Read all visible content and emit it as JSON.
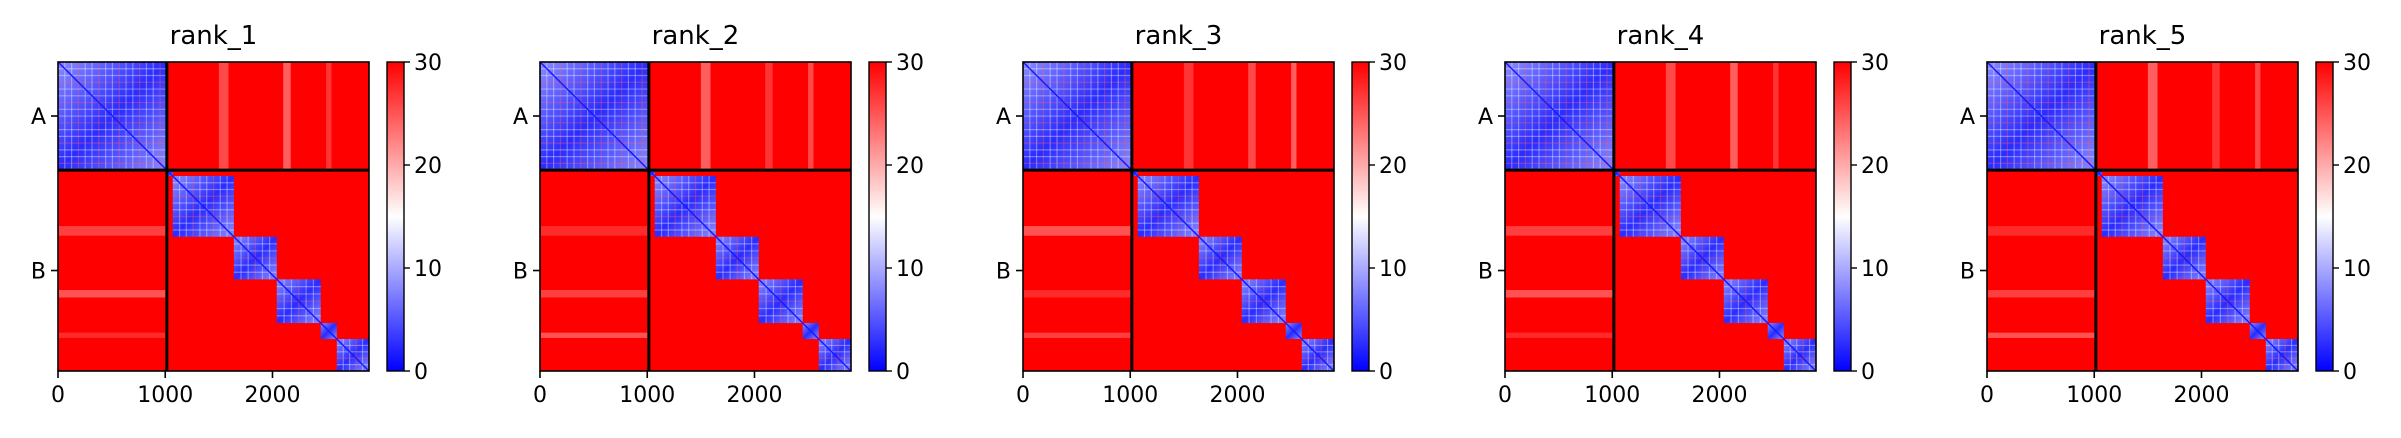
{
  "chart_data": [
    {
      "type": "heatmap",
      "title": "rank_1",
      "colormap": {
        "name": "bwr",
        "low": "#0000ff",
        "mid": "#ffffff",
        "high": "#ff0000"
      },
      "clim": [
        0,
        30
      ],
      "colorbar_ticks": [
        "0",
        "10",
        "20",
        "30"
      ],
      "xlim": [
        0,
        2900
      ],
      "xticks": [
        {
          "value": 0,
          "label": "0"
        },
        {
          "value": 1000,
          "label": "1000"
        },
        {
          "value": 2000,
          "label": "2000"
        }
      ],
      "chain_boundary": 1015,
      "yticks": [
        {
          "value": 507,
          "label": "A"
        },
        {
          "value": 1957,
          "label": "B"
        }
      ],
      "domains": [
        [
          0,
          1015
        ],
        [
          1070,
          1640
        ],
        [
          1640,
          2040
        ],
        [
          2040,
          2450
        ],
        [
          2600,
          2900
        ]
      ],
      "extra_domains": [
        [
          1015,
          1070
        ],
        [
          2450,
          2600
        ]
      ]
    },
    {
      "type": "heatmap",
      "title": "rank_2",
      "colormap": {
        "name": "bwr",
        "low": "#0000ff",
        "mid": "#ffffff",
        "high": "#ff0000"
      },
      "clim": [
        0,
        30
      ],
      "colorbar_ticks": [
        "0",
        "10",
        "20",
        "30"
      ],
      "xlim": [
        0,
        2900
      ],
      "xticks": [
        {
          "value": 0,
          "label": "0"
        },
        {
          "value": 1000,
          "label": "1000"
        },
        {
          "value": 2000,
          "label": "2000"
        }
      ],
      "chain_boundary": 1015,
      "yticks": [
        {
          "value": 507,
          "label": "A"
        },
        {
          "value": 1957,
          "label": "B"
        }
      ],
      "domains": [
        [
          0,
          1015
        ],
        [
          1070,
          1640
        ],
        [
          1640,
          2040
        ],
        [
          2040,
          2450
        ],
        [
          2600,
          2900
        ]
      ],
      "extra_domains": [
        [
          1015,
          1070
        ],
        [
          2450,
          2600
        ]
      ]
    },
    {
      "type": "heatmap",
      "title": "rank_3",
      "colormap": {
        "name": "bwr",
        "low": "#0000ff",
        "mid": "#ffffff",
        "high": "#ff0000"
      },
      "clim": [
        0,
        30
      ],
      "colorbar_ticks": [
        "0",
        "10",
        "20",
        "30"
      ],
      "xlim": [
        0,
        2900
      ],
      "xticks": [
        {
          "value": 0,
          "label": "0"
        },
        {
          "value": 1000,
          "label": "1000"
        },
        {
          "value": 2000,
          "label": "2000"
        }
      ],
      "chain_boundary": 1015,
      "yticks": [
        {
          "value": 507,
          "label": "A"
        },
        {
          "value": 1957,
          "label": "B"
        }
      ],
      "domains": [
        [
          0,
          1015
        ],
        [
          1070,
          1640
        ],
        [
          1640,
          2040
        ],
        [
          2040,
          2450
        ],
        [
          2600,
          2900
        ]
      ],
      "extra_domains": [
        [
          1015,
          1070
        ],
        [
          2450,
          2600
        ]
      ]
    },
    {
      "type": "heatmap",
      "title": "rank_4",
      "colormap": {
        "name": "bwr",
        "low": "#0000ff",
        "mid": "#ffffff",
        "high": "#ff0000"
      },
      "clim": [
        0,
        30
      ],
      "colorbar_ticks": [
        "0",
        "10",
        "20",
        "30"
      ],
      "xlim": [
        0,
        2900
      ],
      "xticks": [
        {
          "value": 0,
          "label": "0"
        },
        {
          "value": 1000,
          "label": "1000"
        },
        {
          "value": 2000,
          "label": "2000"
        }
      ],
      "chain_boundary": 1015,
      "yticks": [
        {
          "value": 507,
          "label": "A"
        },
        {
          "value": 1957,
          "label": "B"
        }
      ],
      "domains": [
        [
          0,
          1015
        ],
        [
          1070,
          1640
        ],
        [
          1640,
          2040
        ],
        [
          2040,
          2450
        ],
        [
          2600,
          2900
        ]
      ],
      "extra_domains": [
        [
          1015,
          1070
        ],
        [
          2450,
          2600
        ]
      ]
    },
    {
      "type": "heatmap",
      "title": "rank_5",
      "colormap": {
        "name": "bwr",
        "low": "#0000ff",
        "mid": "#ffffff",
        "high": "#ff0000"
      },
      "clim": [
        0,
        30
      ],
      "colorbar_ticks": [
        "0",
        "10",
        "20",
        "30"
      ],
      "xlim": [
        0,
        2900
      ],
      "xticks": [
        {
          "value": 0,
          "label": "0"
        },
        {
          "value": 1000,
          "label": "1000"
        },
        {
          "value": 2000,
          "label": "2000"
        }
      ],
      "chain_boundary": 1015,
      "yticks": [
        {
          "value": 507,
          "label": "A"
        },
        {
          "value": 1957,
          "label": "B"
        }
      ],
      "domains": [
        [
          0,
          1015
        ],
        [
          1070,
          1640
        ],
        [
          1640,
          2040
        ],
        [
          2040,
          2450
        ],
        [
          2600,
          2900
        ]
      ],
      "extra_domains": [
        [
          1015,
          1070
        ],
        [
          2450,
          2600
        ]
      ]
    }
  ]
}
